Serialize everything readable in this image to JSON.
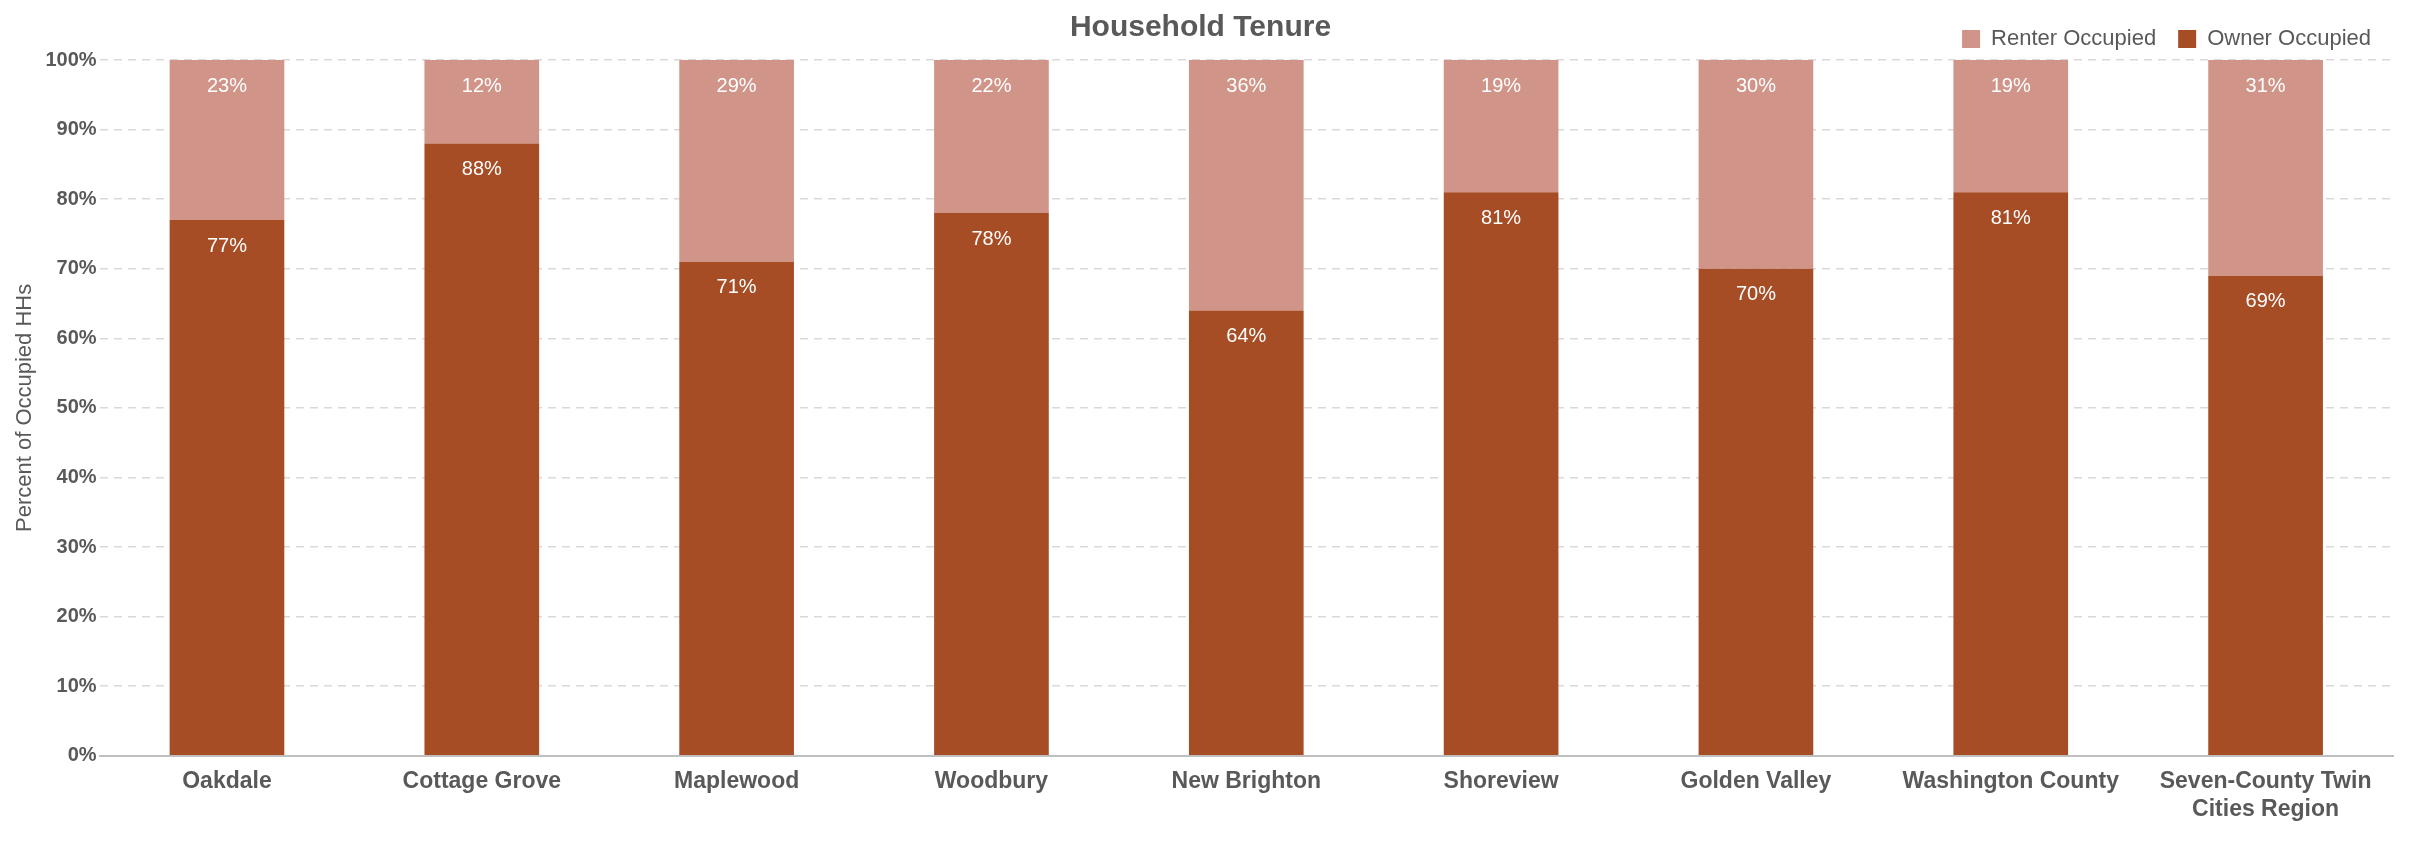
{
  "chart_data": {
    "type": "bar",
    "stacked": true,
    "title": "Household Tenure",
    "ylabel": "Percent of Occupied HHs",
    "categories": [
      "Oakdale",
      "Cottage Grove",
      "Maplewood",
      "Woodbury",
      "New Brighton",
      "Shoreview",
      "Golden Valley",
      "Washington County",
      "Seven-County Twin Cities Region"
    ],
    "series": [
      {
        "name": "Owner Occupied",
        "color": "#a64d26",
        "values": [
          77,
          88,
          71,
          78,
          64,
          81,
          70,
          81,
          69
        ],
        "value_labels": [
          "77%",
          "88%",
          "71%",
          "78%",
          "64%",
          "81%",
          "70%",
          "81%",
          "69%"
        ]
      },
      {
        "name": "Renter Occupied",
        "color": "#d09488",
        "values": [
          23,
          12,
          29,
          22,
          36,
          19,
          30,
          19,
          31
        ],
        "value_labels": [
          "23%",
          "12%",
          "29%",
          "22%",
          "36%",
          "19%",
          "30%",
          "19%",
          "31%"
        ]
      }
    ],
    "ylim": [
      0,
      100
    ],
    "yticks": [
      {
        "value": 0,
        "label": "0%"
      },
      {
        "value": 10,
        "label": "10%"
      },
      {
        "value": 20,
        "label": "20%"
      },
      {
        "value": 30,
        "label": "30%"
      },
      {
        "value": 40,
        "label": "40%"
      },
      {
        "value": 50,
        "label": "50%"
      },
      {
        "value": 60,
        "label": "60%"
      },
      {
        "value": 70,
        "label": "70%"
      },
      {
        "value": 80,
        "label": "80%"
      },
      {
        "value": 90,
        "label": "90%"
      },
      {
        "value": 100,
        "label": "100%"
      }
    ],
    "grid": "y",
    "legend": "top right"
  }
}
